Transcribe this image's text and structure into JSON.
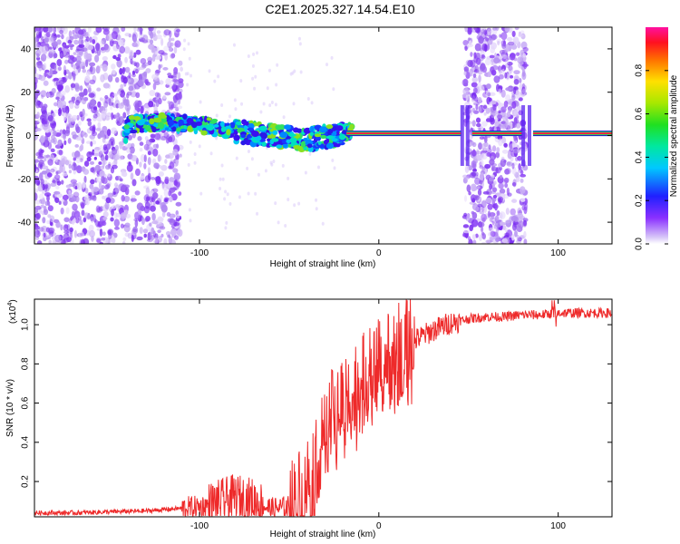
{
  "title": "C2E1.2025.327.14.54.E10",
  "chart_data": [
    {
      "type": "heatmap",
      "xlabel": "Height of straight line (km)",
      "ylabel": "Frequency (Hz)",
      "xlim": [
        -192,
        130
      ],
      "ylim": [
        -50,
        50
      ],
      "xticks": [
        -100,
        0,
        100
      ],
      "yticks": [
        -40,
        -20,
        0,
        20,
        40
      ],
      "colorbar": {
        "label": "Normalized spectral amplitude",
        "range": [
          0.0,
          1.0
        ],
        "ticks": [
          0.0,
          0.2,
          0.4,
          0.6,
          0.8
        ]
      },
      "ridge": {
        "x": [
          -140,
          -120,
          -100,
          -80,
          -60,
          -40,
          -25,
          -15,
          0,
          40,
          50,
          80,
          90,
          130
        ],
        "frequency": [
          5,
          6,
          5,
          2,
          0,
          -2,
          0,
          2,
          1,
          1,
          1,
          1,
          1,
          1
        ]
      },
      "noise_bands": [
        {
          "x_range": [
            -192,
            -110
          ],
          "description": "broadband noise"
        },
        {
          "x_range": [
            48,
            82
          ],
          "description": "broadband noise"
        }
      ]
    },
    {
      "type": "line",
      "xlabel": "Height of straight line (km)",
      "ylabel": "SNR (10 * v/v)",
      "y_scale_label": "(x10",
      "y_scale_exp": "4",
      "y_scale_close": ")",
      "xlim": [
        -192,
        130
      ],
      "ylim": [
        0.02,
        1.13
      ],
      "xticks": [
        -100,
        0,
        100
      ],
      "yticks": [
        0.2,
        0.4,
        0.6,
        0.8,
        1.0
      ],
      "series": [
        {
          "name": "SNR",
          "color": "#ee2a2a",
          "x": [
            -192,
            -170,
            -150,
            -130,
            -115,
            -100,
            -90,
            -80,
            -70,
            -60,
            -50,
            -45,
            -40,
            -35,
            -30,
            -25,
            -20,
            -15,
            -10,
            -5,
            0,
            5,
            10,
            20,
            30,
            40,
            50,
            60,
            70,
            80,
            90,
            100,
            110,
            120,
            130
          ],
          "y": [
            0.04,
            0.04,
            0.045,
            0.05,
            0.06,
            0.07,
            0.09,
            0.12,
            0.1,
            0.06,
            0.07,
            0.12,
            0.2,
            0.32,
            0.45,
            0.55,
            0.62,
            0.66,
            0.7,
            0.74,
            0.78,
            0.82,
            0.86,
            0.92,
            0.97,
            1.01,
            1.03,
            1.04,
            1.04,
            1.05,
            1.05,
            1.06,
            1.06,
            1.06,
            1.06
          ]
        }
      ]
    }
  ]
}
